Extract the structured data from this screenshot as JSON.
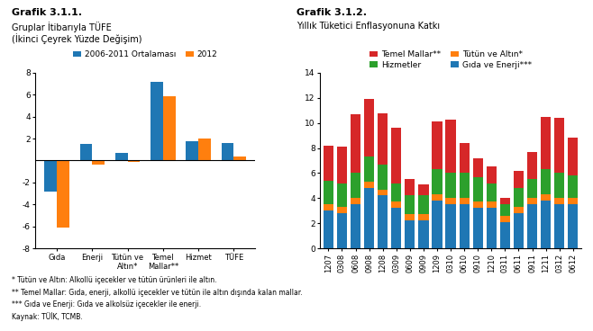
{
  "chart_data": [
    {
      "type": "bar",
      "title": "Grafik 3.1.1.",
      "subtitle": [
        "Gruplar İtibarıyla TÜFE",
        "(İkinci Çeyrek Yüzde Değişim)"
      ],
      "categories": [
        "Gıda",
        "Enerji",
        "Tütün ve\nAltın*",
        "Temel\nMallar**",
        "Hizmet",
        "TÜFE"
      ],
      "series": [
        {
          "name": "2006-2011 Ortalaması",
          "values": [
            -2.8,
            1.55,
            0.7,
            7.2,
            1.8,
            1.6
          ]
        },
        {
          "name": "2012",
          "values": [
            -6.1,
            -0.4,
            -0.15,
            5.9,
            2.0,
            0.35
          ]
        }
      ],
      "ylim": [
        -8,
        8
      ],
      "yticks": [
        -8,
        -6,
        -4,
        -2,
        2,
        4,
        6,
        8
      ],
      "legend": "upper center"
    },
    {
      "type": "bar",
      "stacked": true,
      "title": "Grafik 3.1.2.",
      "subtitle": [
        "Yıllık Tüketici Enflasyonuna Katkı"
      ],
      "categories": [
        "1207",
        "0308",
        "0608",
        "0908",
        "1208",
        "0309",
        "0609",
        "0909",
        "1209",
        "0310",
        "0610",
        "0910",
        "1210",
        "0311",
        "0611",
        "0911",
        "1211",
        "0312",
        "0612"
      ],
      "series": [
        {
          "name": "Gıda ve Enerji***",
          "values": [
            3.0,
            2.8,
            3.5,
            4.8,
            4.2,
            3.2,
            2.2,
            2.2,
            3.8,
            3.5,
            3.5,
            3.2,
            3.2,
            2.1,
            2.8,
            3.5,
            3.8,
            3.5,
            3.5
          ]
        },
        {
          "name": "Tütün ve Altın*",
          "values": [
            0.5,
            0.5,
            0.5,
            0.5,
            0.5,
            0.5,
            0.5,
            0.5,
            0.5,
            0.5,
            0.5,
            0.5,
            0.5,
            0.5,
            0.5,
            0.5,
            0.5,
            0.5,
            0.5
          ]
        },
        {
          "name": "Hizmetler",
          "values": [
            1.9,
            1.9,
            2.0,
            2.0,
            2.0,
            1.5,
            1.5,
            1.5,
            2.0,
            2.0,
            2.0,
            2.0,
            1.5,
            0.9,
            1.5,
            1.5,
            2.0,
            2.0,
            1.8
          ]
        },
        {
          "name": "Temel Mallar**",
          "values": [
            2.8,
            2.9,
            4.7,
            4.6,
            4.1,
            4.4,
            1.3,
            0.9,
            3.8,
            4.3,
            2.4,
            1.5,
            1.3,
            0.5,
            1.4,
            2.2,
            4.2,
            4.4,
            3.0
          ]
        }
      ],
      "ylim": [
        0,
        14
      ],
      "yticks": [
        0,
        2,
        4,
        6,
        8,
        10,
        12,
        14
      ],
      "legend": "upper center"
    }
  ],
  "annotations": [
    "* Tütün ve Altın: Alkollü içecekler ve tütün ürünleri ile altın.",
    "** Temel Mallar: Gıda, enerji, alkollü içecekler ve tütün ile altın dışında kalan mallar.",
    "*** Gıda ve Enerji: Gıda ve alkolsüz içecekler ile enerji.",
    "Kaynak: TÜİK, TCMB."
  ]
}
